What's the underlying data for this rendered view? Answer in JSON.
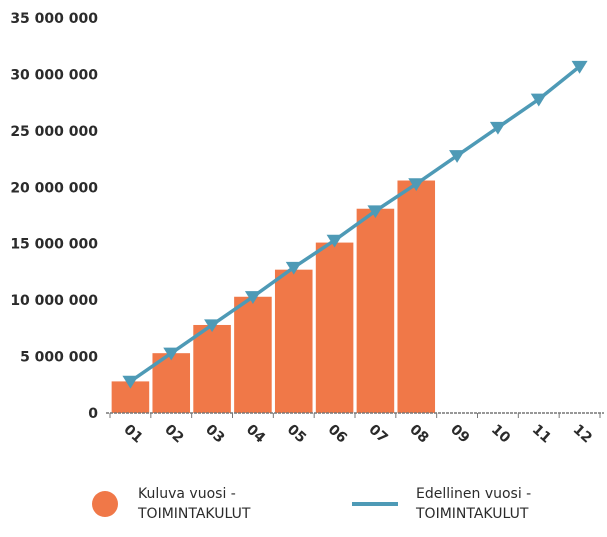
{
  "chart_data": {
    "type": "bar",
    "categories": [
      "01",
      "02",
      "03",
      "04",
      "05",
      "06",
      "07",
      "08",
      "09",
      "10",
      "11",
      "12"
    ],
    "series": [
      {
        "name": "Kuluva vuosi - TOIMINTAKULUT",
        "kind": "bar",
        "color": "#f07848",
        "values": [
          2800000,
          5300000,
          7800000,
          10300000,
          12700000,
          15100000,
          18100000,
          20600000,
          null,
          null,
          null,
          null
        ]
      },
      {
        "name": "Edellinen vuosi - TOIMINTAKULUT",
        "kind": "line",
        "color": "#4e9ab6",
        "values": [
          2800000,
          5300000,
          7800000,
          10300000,
          12900000,
          15300000,
          17900000,
          20300000,
          22800000,
          25300000,
          27800000,
          30700000
        ]
      }
    ],
    "y_ticks": [
      "0",
      "5 000 000",
      "10 000 000",
      "15 000 000",
      "20 000 000",
      "25 000 000",
      "30 000 000",
      "35 000 000"
    ],
    "ylim": [
      0,
      35000000
    ],
    "grid": false,
    "legend_position": "bottom"
  },
  "legend": {
    "current_line1": "Kuluva vuosi -",
    "current_line2": "TOIMINTAKULUT",
    "previous_line1": "Edellinen vuosi -",
    "previous_line2": "TOIMINTAKULUT"
  }
}
